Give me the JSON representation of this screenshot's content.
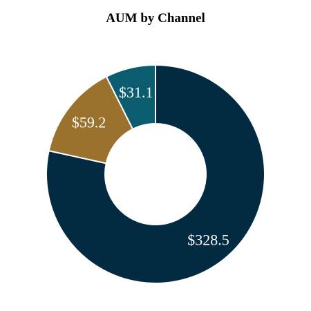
{
  "chart_data": {
    "type": "pie",
    "subtype": "donut",
    "title": "AUM by Channel",
    "categories": [
      "",
      "",
      ""
    ],
    "values": [
      328.5,
      59.2,
      31.1
    ],
    "labels": [
      "$328.5",
      "$59.2",
      "$31.1"
    ],
    "colors": [
      "#022a41",
      "#9a722e",
      "#0b5c6e"
    ],
    "legend": "none",
    "start": "top",
    "direction": "clockwise"
  }
}
